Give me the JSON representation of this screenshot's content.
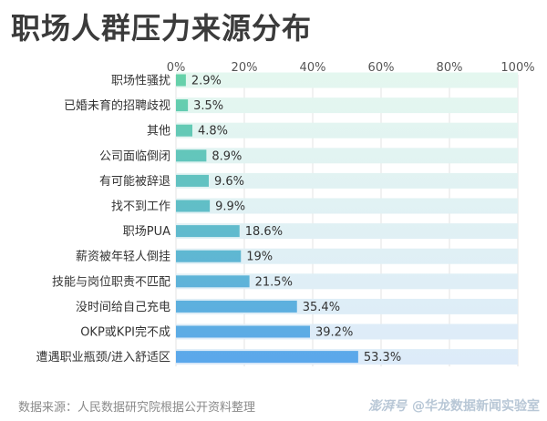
{
  "chart_data": {
    "type": "bar",
    "orientation": "horizontal",
    "title": "职场人群压力来源分布",
    "categories": [
      "职场性骚扰",
      "已婚未育的招聘歧视",
      "其他",
      "公司面临倒闭",
      "有可能被辞退",
      "找不到工作",
      "职场PUA",
      "薪资被年轻人倒挂",
      "技能与岗位职责不匹配",
      "没时间给自己充电",
      "OKP或KPI完不成",
      "遭遇职业瓶颈/进入舒适区"
    ],
    "values": [
      2.9,
      3.5,
      4.8,
      8.9,
      9.6,
      9.9,
      18.6,
      19,
      21.5,
      35.4,
      39.2,
      53.3
    ],
    "value_labels": [
      "2.9%",
      "3.5%",
      "4.8%",
      "8.9%",
      "9.6%",
      "9.9%",
      "18.6%",
      "19%",
      "21.5%",
      "35.4%",
      "39.2%",
      "53.3%"
    ],
    "xlim": [
      0,
      100
    ],
    "xticks": [
      "0%",
      "20%",
      "40%",
      "60%",
      "80%",
      "100%"
    ],
    "axis_position": "top",
    "grid": true,
    "colors": {
      "bar_gradient": [
        "#66d2a8",
        "#5ba7ec"
      ],
      "track_gradient": [
        "#e4f7ef",
        "#ddebf9"
      ],
      "text": "#333333"
    }
  },
  "footer": {
    "source": "数据来源：人民数据研究院根据公开资料整理",
    "platform": "澎湃号",
    "credit": "@华龙数据新闻实验室"
  }
}
